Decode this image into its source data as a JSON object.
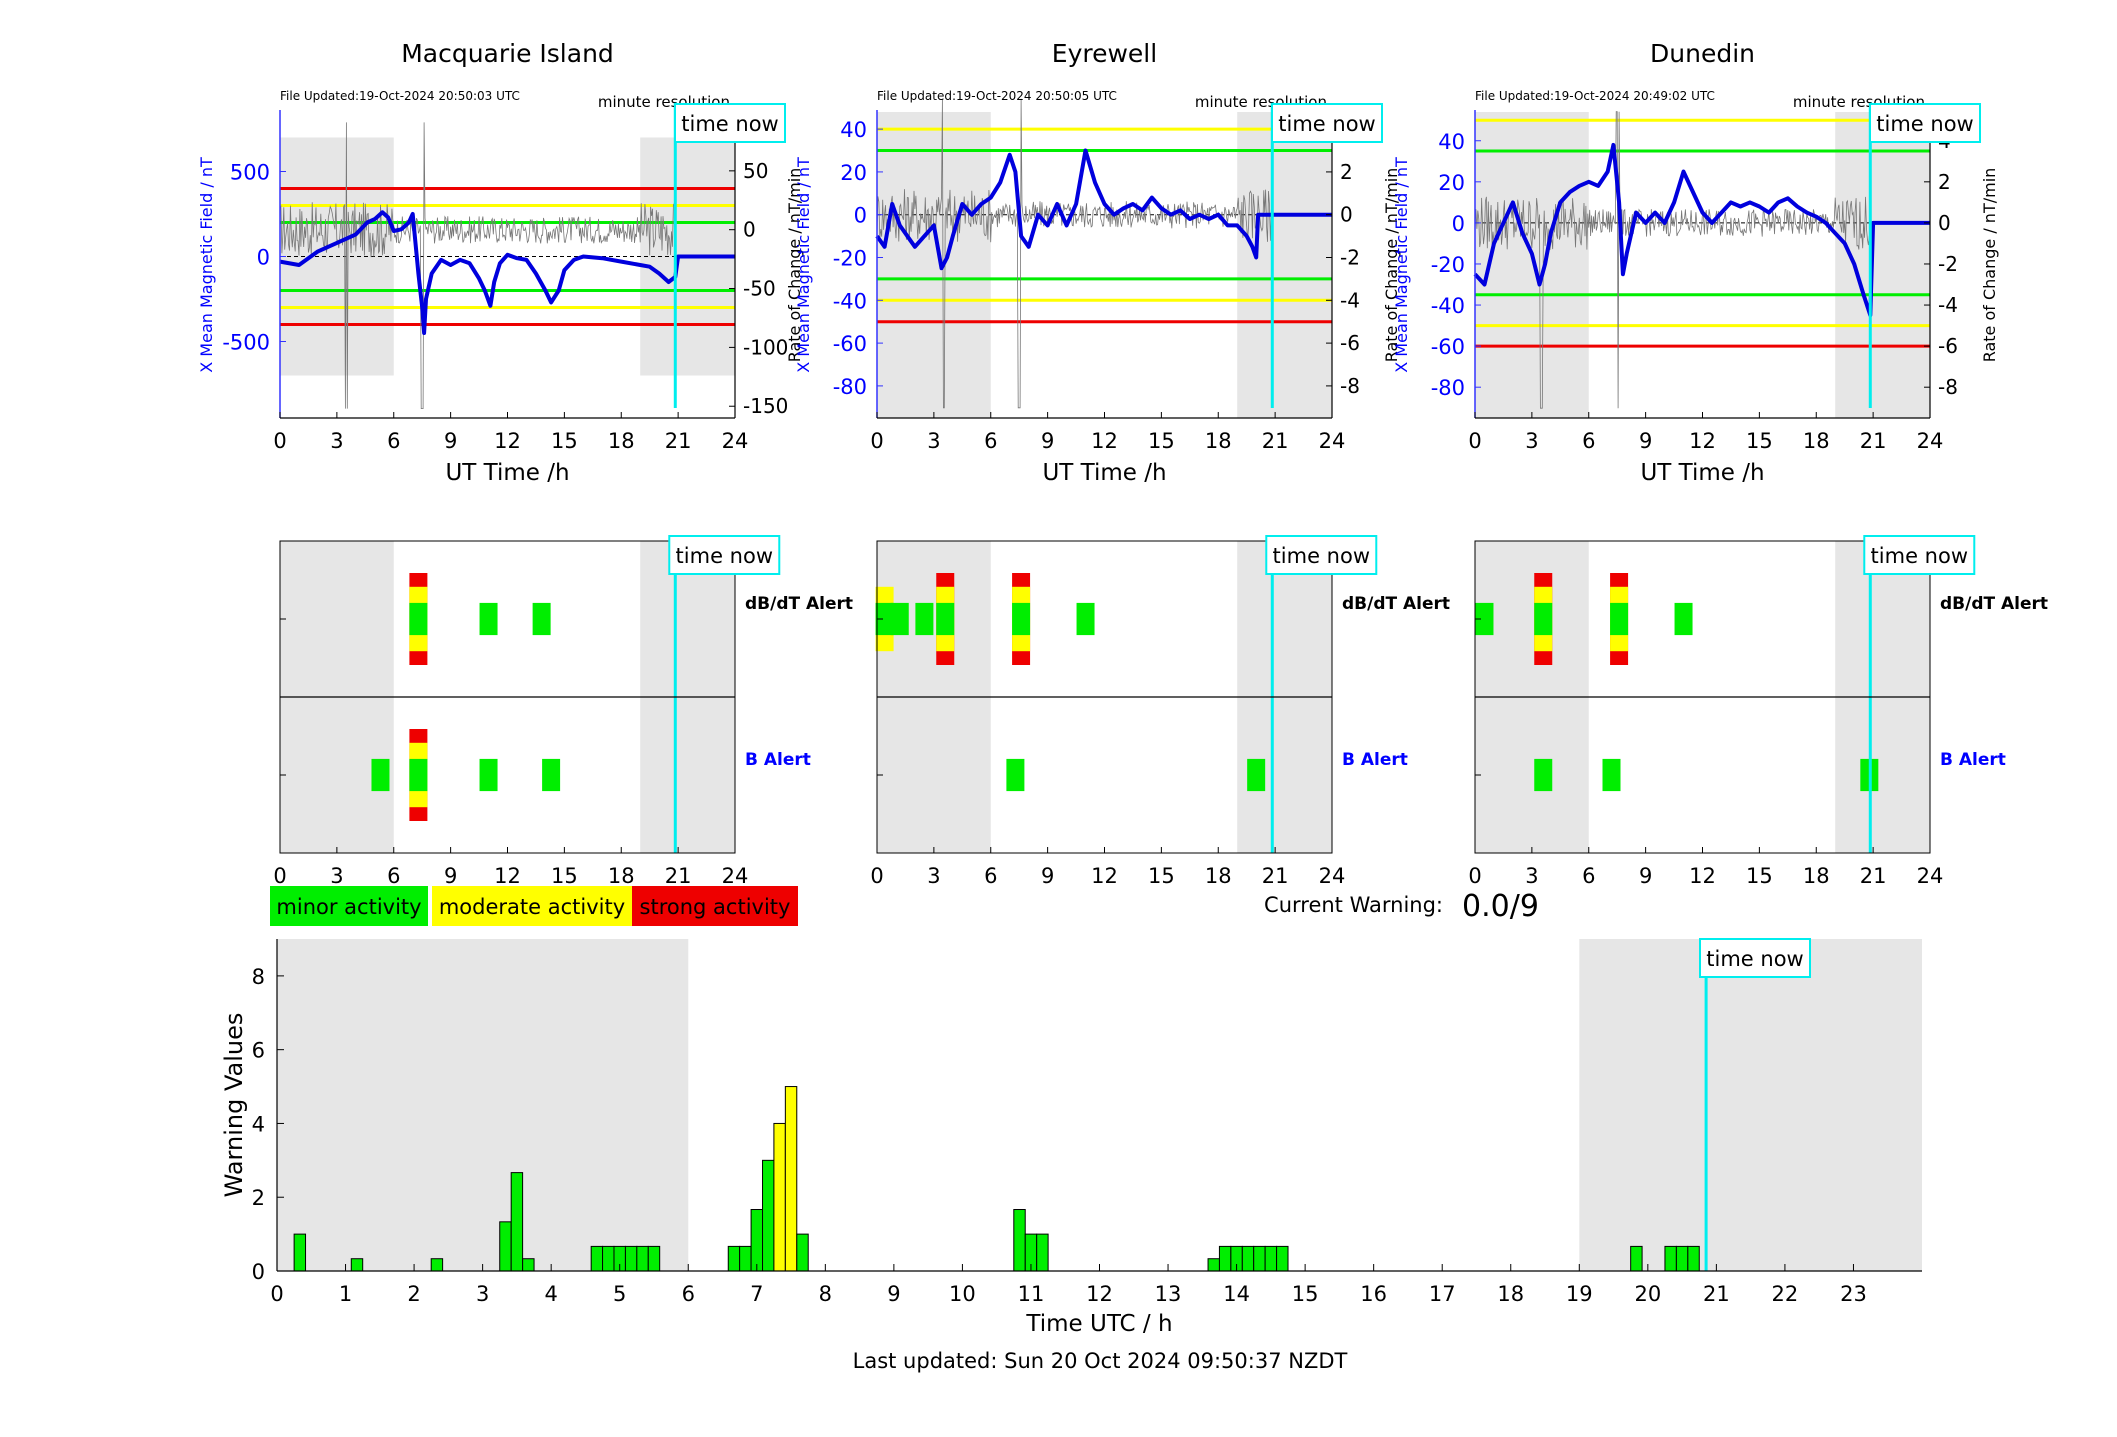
{
  "colors": {
    "mean_line": "#0000dd",
    "raw_trace": "#777777",
    "green": "#00ee00",
    "yellow": "#ffff00",
    "red": "#ee0000",
    "night_shade": "#e6e6e6",
    "time_now": "#00eeee",
    "blue_text": "#0000ff"
  },
  "time_now_label": "time now",
  "stations": [
    {
      "name": "Macquarie Island",
      "file_updated": "File Updated:19-Oct-2024 20:50:03 UTC",
      "resolution": "minute resolution",
      "left_ylabel": "X Mean Magnetic Field / nT",
      "right_ylabel": "Rate of Change / nT/min",
      "xlabel": "UT Time /h",
      "left_ylim": [
        -950,
        850
      ],
      "left_ticks": [
        -500,
        0,
        500
      ],
      "right_ylim": [
        -160,
        100
      ],
      "right_ticks": [
        -150,
        -100,
        -50,
        0,
        50,
        100
      ],
      "night_bands": [
        [
          0,
          6
        ],
        [
          19,
          24
        ]
      ],
      "night_range": [
        -700,
        700
      ],
      "thresholds": [
        {
          "level": 400,
          "color": "red"
        },
        {
          "level": 300,
          "color": "yellow"
        },
        {
          "level": 200,
          "color": "green"
        },
        {
          "level": -200,
          "color": "green"
        },
        {
          "level": -300,
          "color": "yellow"
        },
        {
          "level": -400,
          "color": "red"
        }
      ],
      "time_now": 20.85,
      "mean_trace": [
        [
          0,
          -30
        ],
        [
          1,
          -50
        ],
        [
          2,
          30
        ],
        [
          3,
          80
        ],
        [
          4,
          130
        ],
        [
          4.6,
          200
        ],
        [
          5,
          220
        ],
        [
          5.4,
          260
        ],
        [
          5.7,
          230
        ],
        [
          6,
          150
        ],
        [
          6.4,
          160
        ],
        [
          6.8,
          200
        ],
        [
          7,
          250
        ],
        [
          7.3,
          -100
        ],
        [
          7.5,
          -300
        ],
        [
          7.6,
          -450
        ],
        [
          7.7,
          -250
        ],
        [
          8,
          -100
        ],
        [
          8.5,
          -20
        ],
        [
          9,
          -50
        ],
        [
          9.5,
          -20
        ],
        [
          10,
          -40
        ],
        [
          10.5,
          -130
        ],
        [
          10.8,
          -200
        ],
        [
          11.1,
          -290
        ],
        [
          11.3,
          -150
        ],
        [
          11.6,
          -40
        ],
        [
          12,
          10
        ],
        [
          12.5,
          -10
        ],
        [
          13,
          -20
        ],
        [
          13.5,
          -100
        ],
        [
          14,
          -200
        ],
        [
          14.3,
          -270
        ],
        [
          14.7,
          -200
        ],
        [
          15,
          -80
        ],
        [
          15.5,
          -20
        ],
        [
          16,
          0
        ],
        [
          17,
          -10
        ],
        [
          18,
          -30
        ],
        [
          19,
          -50
        ],
        [
          19.5,
          -60
        ],
        [
          20,
          -100
        ],
        [
          20.5,
          -150
        ],
        [
          20.85,
          -120
        ],
        [
          21,
          0
        ],
        [
          24,
          0
        ]
      ],
      "dbdt_alert": [
        [
          7.3,
          3
        ],
        [
          11,
          1
        ],
        [
          13.8,
          1
        ]
      ],
      "b_alert": [
        [
          5.3,
          1
        ],
        [
          7.3,
          3
        ],
        [
          11,
          1
        ],
        [
          14.3,
          1
        ]
      ]
    },
    {
      "name": "Eyrewell",
      "file_updated": "File Updated:19-Oct-2024 20:50:05 UTC",
      "resolution": "minute resolution",
      "left_ylabel": "X Mean Magnetic Field / nT",
      "right_ylabel": "Rate of Change / nT/min",
      "xlabel": "UT Time /h",
      "left_ylim": [
        -95,
        48
      ],
      "left_ticks": [
        -80,
        -60,
        -40,
        -20,
        0,
        20,
        40
      ],
      "right_ylim": [
        -9.5,
        4.8
      ],
      "right_ticks": [
        -8,
        -6,
        -4,
        -2,
        0,
        2,
        4
      ],
      "night_bands": [
        [
          0,
          6
        ],
        [
          19,
          24
        ]
      ],
      "night_range": [
        -95,
        48
      ],
      "thresholds": [
        {
          "level": 40,
          "color": "yellow"
        },
        {
          "level": 30,
          "color": "green"
        },
        {
          "level": -30,
          "color": "green"
        },
        {
          "level": -40,
          "color": "yellow"
        },
        {
          "level": -50,
          "color": "red"
        }
      ],
      "time_now": 20.85,
      "mean_trace": [
        [
          0,
          -10
        ],
        [
          0.4,
          -15
        ],
        [
          0.8,
          5
        ],
        [
          1.2,
          -5
        ],
        [
          2,
          -15
        ],
        [
          2.5,
          -10
        ],
        [
          3,
          -5
        ],
        [
          3.4,
          -25
        ],
        [
          3.7,
          -20
        ],
        [
          4,
          -10
        ],
        [
          4.5,
          5
        ],
        [
          5,
          0
        ],
        [
          5.5,
          5
        ],
        [
          6,
          8
        ],
        [
          6.5,
          15
        ],
        [
          7,
          28
        ],
        [
          7.3,
          20
        ],
        [
          7.6,
          -10
        ],
        [
          8,
          -15
        ],
        [
          8.5,
          0
        ],
        [
          9,
          -5
        ],
        [
          9.5,
          5
        ],
        [
          10,
          -5
        ],
        [
          10.5,
          5
        ],
        [
          11,
          30
        ],
        [
          11.5,
          15
        ],
        [
          12,
          5
        ],
        [
          12.5,
          0
        ],
        [
          13,
          3
        ],
        [
          13.5,
          5
        ],
        [
          14,
          2
        ],
        [
          14.5,
          8
        ],
        [
          15,
          3
        ],
        [
          15.5,
          0
        ],
        [
          16,
          2
        ],
        [
          16.5,
          -2
        ],
        [
          17,
          0
        ],
        [
          17.5,
          -2
        ],
        [
          18,
          0
        ],
        [
          18.5,
          -5
        ],
        [
          19,
          -5
        ],
        [
          19.5,
          -10
        ],
        [
          19.8,
          -15
        ],
        [
          20,
          -20
        ],
        [
          20.1,
          0
        ],
        [
          24,
          0
        ]
      ],
      "dbdt_alert": [
        [
          0.4,
          2
        ],
        [
          1.2,
          1
        ],
        [
          2.5,
          1
        ],
        [
          3.6,
          3
        ],
        [
          7.6,
          3
        ],
        [
          11,
          1
        ]
      ],
      "b_alert": [
        [
          7.3,
          1
        ],
        [
          20,
          1
        ]
      ]
    },
    {
      "name": "Dunedin",
      "file_updated": "File Updated:19-Oct-2024 20:49:02 UTC",
      "resolution": "minute resolution",
      "left_ylabel": "X Mean Magnetic Field / nT",
      "right_ylabel": "Rate of Change / nT/min",
      "xlabel": "UT Time /h",
      "left_ylim": [
        -95,
        54
      ],
      "left_ticks": [
        -80,
        -60,
        -40,
        -20,
        0,
        20,
        40
      ],
      "right_ylim": [
        -9.5,
        5.4
      ],
      "right_ticks": [
        -8,
        -6,
        -4,
        -2,
        0,
        2,
        4
      ],
      "night_bands": [
        [
          0,
          6
        ],
        [
          19,
          24
        ]
      ],
      "night_range": [
        -95,
        54
      ],
      "thresholds": [
        {
          "level": 50,
          "color": "yellow"
        },
        {
          "level": 35,
          "color": "green"
        },
        {
          "level": -35,
          "color": "green"
        },
        {
          "level": -50,
          "color": "yellow"
        },
        {
          "level": -60,
          "color": "red"
        }
      ],
      "time_now": 20.85,
      "mean_trace": [
        [
          0,
          -25
        ],
        [
          0.5,
          -30
        ],
        [
          1,
          -10
        ],
        [
          1.5,
          0
        ],
        [
          2,
          10
        ],
        [
          2.5,
          -5
        ],
        [
          3,
          -15
        ],
        [
          3.4,
          -30
        ],
        [
          3.7,
          -20
        ],
        [
          4,
          -5
        ],
        [
          4.5,
          10
        ],
        [
          5,
          15
        ],
        [
          5.5,
          18
        ],
        [
          6,
          20
        ],
        [
          6.5,
          18
        ],
        [
          7,
          25
        ],
        [
          7.3,
          38
        ],
        [
          7.6,
          10
        ],
        [
          7.8,
          -25
        ],
        [
          8,
          -15
        ],
        [
          8.5,
          5
        ],
        [
          9,
          0
        ],
        [
          9.5,
          5
        ],
        [
          10,
          0
        ],
        [
          10.5,
          10
        ],
        [
          11,
          25
        ],
        [
          11.5,
          15
        ],
        [
          12,
          5
        ],
        [
          12.5,
          0
        ],
        [
          13,
          5
        ],
        [
          13.5,
          10
        ],
        [
          14,
          8
        ],
        [
          14.5,
          10
        ],
        [
          15,
          8
        ],
        [
          15.5,
          5
        ],
        [
          16,
          10
        ],
        [
          16.5,
          12
        ],
        [
          17,
          8
        ],
        [
          17.5,
          5
        ],
        [
          18,
          3
        ],
        [
          18.5,
          0
        ],
        [
          19,
          -5
        ],
        [
          19.5,
          -10
        ],
        [
          20,
          -20
        ],
        [
          20.5,
          -35
        ],
        [
          20.85,
          -45
        ],
        [
          21,
          0
        ],
        [
          24,
          0
        ]
      ],
      "dbdt_alert": [
        [
          0.5,
          1
        ],
        [
          3.6,
          3
        ],
        [
          7.6,
          3
        ],
        [
          11,
          1
        ]
      ],
      "b_alert": [
        [
          3.6,
          1
        ],
        [
          7.2,
          1
        ],
        [
          20.8,
          1
        ]
      ]
    }
  ],
  "alerts": {
    "dbdt_label": "dB/dT Alert",
    "b_label": "B Alert"
  },
  "legend": {
    "minor": "minor activity",
    "moderate": "moderate activity",
    "strong": "strong activity"
  },
  "current_warning": {
    "label": "Current Warning:",
    "value": "0.0/9"
  },
  "chart_data": {
    "type": "bar",
    "xlabel": "Time UTC / h",
    "ylabel": "Warning Values",
    "xlim": [
      0,
      24
    ],
    "ylim": [
      0,
      9
    ],
    "xticks": [
      0,
      1,
      2,
      3,
      4,
      5,
      6,
      7,
      8,
      9,
      10,
      11,
      12,
      13,
      14,
      15,
      16,
      17,
      18,
      19,
      20,
      21,
      22,
      23
    ],
    "yticks": [
      0,
      2,
      4,
      6,
      8
    ],
    "night_bands": [
      [
        0,
        6
      ],
      [
        19,
        24
      ]
    ],
    "time_now": 20.85,
    "bar_width": 0.1667,
    "bars": [
      [
        0.333,
        1.0
      ],
      [
        1.167,
        0.333
      ],
      [
        2.333,
        0.333
      ],
      [
        3.333,
        1.333
      ],
      [
        3.5,
        2.667
      ],
      [
        3.667,
        0.333
      ],
      [
        4.667,
        0.667
      ],
      [
        4.833,
        0.667
      ],
      [
        5.0,
        0.667
      ],
      [
        5.167,
        0.667
      ],
      [
        5.333,
        0.667
      ],
      [
        5.5,
        0.667
      ],
      [
        6.667,
        0.667
      ],
      [
        6.833,
        0.667
      ],
      [
        7.0,
        1.667
      ],
      [
        7.167,
        3.0
      ],
      [
        7.333,
        4.0
      ],
      [
        7.5,
        5.0
      ],
      [
        7.667,
        1.0
      ],
      [
        10.833,
        1.667
      ],
      [
        11.0,
        1.0
      ],
      [
        11.167,
        1.0
      ],
      [
        13.667,
        0.333
      ],
      [
        13.833,
        0.667
      ],
      [
        14.0,
        0.667
      ],
      [
        14.167,
        0.667
      ],
      [
        14.333,
        0.667
      ],
      [
        14.5,
        0.667
      ],
      [
        14.667,
        0.667
      ],
      [
        19.833,
        0.667
      ],
      [
        20.333,
        0.667
      ],
      [
        20.5,
        0.667
      ],
      [
        20.667,
        0.667
      ]
    ],
    "last_updated": "Last updated: Sun 20 Oct 2024 09:50:37 NZDT"
  }
}
